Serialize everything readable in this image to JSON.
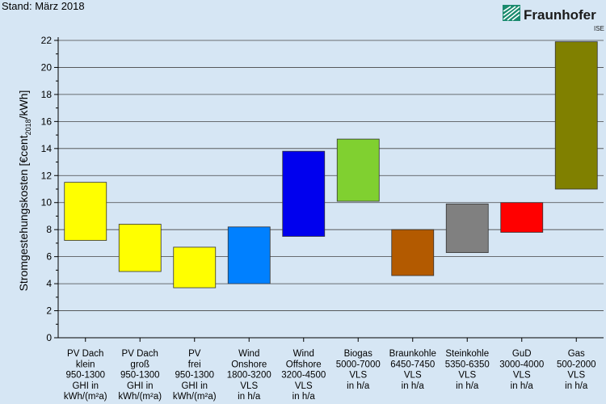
{
  "header": {
    "stand_label": "Stand: März 2018"
  },
  "logo": {
    "name": "Fraunhofer",
    "sub": "ISE",
    "color": "#1a8a6e",
    "icon": "fraunhofer-logo-icon"
  },
  "chart_data": {
    "type": "bar",
    "subtype": "floating-range",
    "ylabel_parts": [
      "Stromgestehungskosten [€cent",
      "2018",
      "/kWh]"
    ],
    "ylim": [
      0,
      22
    ],
    "yticks": [
      0,
      2,
      4,
      6,
      8,
      10,
      12,
      14,
      16,
      18,
      20,
      22
    ],
    "grid": true,
    "categories": [
      {
        "lines": [
          "PV Dach",
          "klein",
          "950-1300",
          "GHI in",
          "kWh/(m²a)"
        ],
        "low": 7.2,
        "high": 11.5,
        "color": "#ffff00"
      },
      {
        "lines": [
          "PV Dach",
          "groß",
          "950-1300",
          "GHI in",
          "kWh/(m²a)"
        ],
        "low": 4.9,
        "high": 8.4,
        "color": "#ffff00"
      },
      {
        "lines": [
          "PV",
          "frei",
          "950-1300",
          "GHI in",
          "kWh/(m²a)"
        ],
        "low": 3.7,
        "high": 6.7,
        "color": "#ffff00"
      },
      {
        "lines": [
          "Wind",
          "Onshore",
          "1800-3200",
          "VLS",
          "in h/a"
        ],
        "low": 4.0,
        "high": 8.2,
        "color": "#0080ff"
      },
      {
        "lines": [
          "Wind",
          "Offshore",
          "3200-4500",
          "VLS",
          "in h/a"
        ],
        "low": 7.5,
        "high": 13.8,
        "color": "#0000ee"
      },
      {
        "lines": [
          "Biogas",
          "5000-7000",
          "VLS",
          "in h/a"
        ],
        "low": 10.1,
        "high": 14.7,
        "color": "#80d030"
      },
      {
        "lines": [
          "Braunkohle",
          "6450-7450",
          "VLS",
          "in h/a"
        ],
        "low": 4.6,
        "high": 8.0,
        "color": "#b35a00"
      },
      {
        "lines": [
          "Steinkohle",
          "5350-6350",
          "VLS",
          "in h/a"
        ],
        "low": 6.3,
        "high": 9.9,
        "color": "#808080"
      },
      {
        "lines": [
          "GuD",
          "3000-4000",
          "VLS",
          "in h/a"
        ],
        "low": 7.8,
        "high": 10.0,
        "color": "#ff0000"
      },
      {
        "lines": [
          "Gas",
          "500-2000",
          "VLS",
          "in h/a"
        ],
        "low": 11.0,
        "high": 21.9,
        "color": "#808000"
      }
    ]
  }
}
